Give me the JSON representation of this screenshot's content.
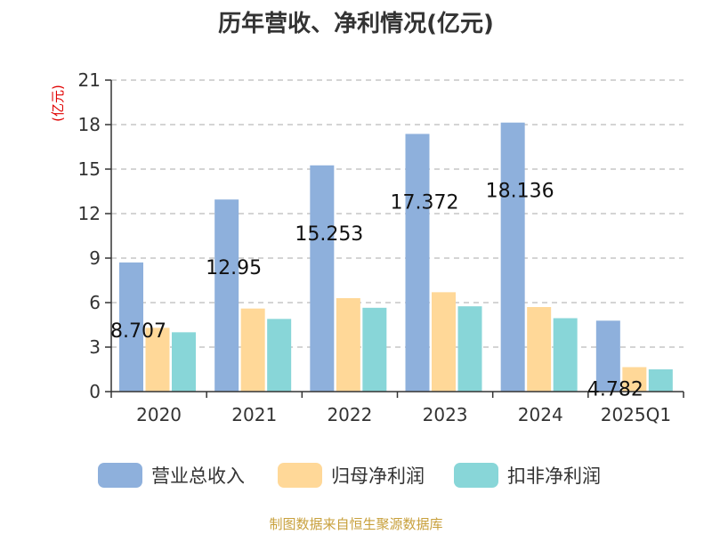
{
  "title": "历年营收、净利情况(亿元)",
  "source": "制图数据来自恒生聚源数据库",
  "chart_data": {
    "type": "bar",
    "ylabel": "(亿元)",
    "ylim": [
      0,
      21
    ],
    "yticks": [
      0,
      3,
      6,
      9,
      12,
      15,
      18,
      21
    ],
    "grid": true,
    "legend_position": "bottom",
    "categories": [
      "2020",
      "2021",
      "2022",
      "2023",
      "2024",
      "2025Q1"
    ],
    "series": [
      {
        "name": "营业总收入",
        "color": "#8eb0dc",
        "values": [
          8.707,
          12.95,
          15.253,
          17.372,
          18.136,
          4.782
        ],
        "labeled": true
      },
      {
        "name": "归母净利润",
        "color": "#ffd898",
        "values": [
          4.3,
          5.6,
          6.3,
          6.7,
          5.7,
          1.65
        ],
        "labeled": false
      },
      {
        "name": "扣非净利润",
        "color": "#88d6d8",
        "values": [
          4.0,
          4.9,
          5.65,
          5.75,
          4.95,
          1.5
        ],
        "labeled": false
      }
    ],
    "data_labels": [
      "8.707",
      "12.95",
      "15.253",
      "17.372",
      "18.136",
      "4.782"
    ]
  }
}
